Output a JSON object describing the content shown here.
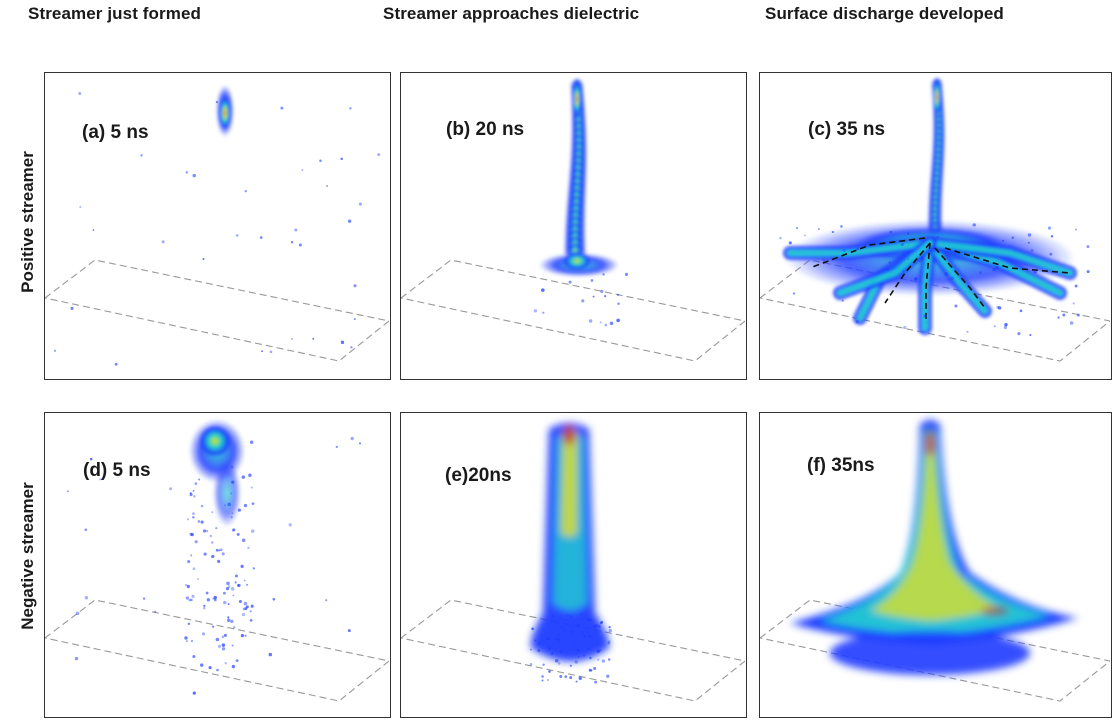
{
  "columns": [
    {
      "title": "Streamer just formed"
    },
    {
      "title": "Streamer approaches dielectric"
    },
    {
      "title": "Surface discharge developed"
    }
  ],
  "rows": [
    {
      "title": "Positive streamer"
    },
    {
      "title": "Negative streamer"
    }
  ],
  "panels": [
    {
      "label": "(a) 5 ns",
      "polarity": "positive",
      "time_ns": 5
    },
    {
      "label": "(b) 20 ns",
      "polarity": "positive",
      "time_ns": 20
    },
    {
      "label": "(c) 35 ns",
      "polarity": "positive",
      "time_ns": 35
    },
    {
      "label": "(d) 5 ns",
      "polarity": "negative",
      "time_ns": 5
    },
    {
      "label": "(e)20ns",
      "polarity": "negative",
      "time_ns": 20
    },
    {
      "label": "(f) 35ns",
      "polarity": "negative",
      "time_ns": 35
    }
  ],
  "colors": {
    "low": "#1e3cff",
    "mid": "#20d0d0",
    "high": "#e8e020",
    "peak": "#c01818",
    "dielectric_outline": "#999999",
    "frame": "#333333"
  }
}
